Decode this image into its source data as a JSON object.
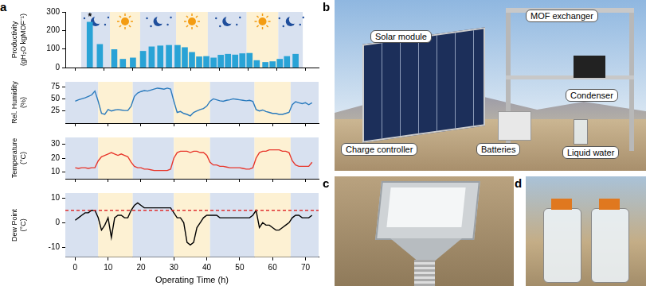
{
  "panel_labels": [
    "a",
    "b",
    "c",
    "d"
  ],
  "bands": [
    {
      "from": -3,
      "to": 7,
      "marker": "moon",
      "color": "#d8e1f0"
    },
    {
      "from": 7,
      "to": 17.5,
      "marker": "sun",
      "color": "#fdf1d3"
    },
    {
      "from": 17.5,
      "to": 30,
      "marker": "moon",
      "color": "#d8e1f0"
    },
    {
      "from": 30,
      "to": 41,
      "marker": "sun",
      "color": "#fdf1d3"
    },
    {
      "from": 41,
      "to": 54.5,
      "marker": "moon",
      "color": "#d8e1f0"
    },
    {
      "from": 54.5,
      "to": 65.5,
      "marker": "sun",
      "color": "#fdf1d3"
    },
    {
      "from": 65.5,
      "to": 74,
      "marker": "moon",
      "color": "#d8e1f0"
    }
  ],
  "photo_callouts": [
    "Solar module",
    "MOF exchanger",
    "Condenser",
    "Charge controller",
    "Batteries",
    "Liquid water"
  ],
  "chart_data": [
    {
      "type": "bar",
      "ylabel": [
        "Productivity",
        "(gH₂O kgMOF⁻¹)"
      ],
      "color": "#29a3d6",
      "x": [
        0,
        3.5,
        8.5,
        11.5,
        15,
        18.5,
        21.5,
        24.5,
        27.5,
        30.5,
        33,
        35.5,
        38,
        40.5,
        43,
        45.5,
        48,
        50.5,
        53,
        55.5,
        58,
        61,
        63.5,
        66,
        68.5,
        71.5
      ],
      "values": [
        245,
        125,
        97,
        45,
        52,
        88,
        112,
        117,
        120,
        120,
        108,
        82,
        58,
        60,
        52,
        67,
        72,
        68,
        75,
        77,
        38,
        28,
        32,
        45,
        60,
        72
      ],
      "annotations": [
        {
          "text": "*",
          "x": 0,
          "y": 272
        }
      ],
      "xlim": [
        -3,
        74
      ],
      "xticks": [
        0,
        10,
        20,
        30,
        40,
        50,
        60,
        70
      ],
      "ylim": [
        0,
        300
      ],
      "yticks": [
        0,
        100,
        200,
        300
      ],
      "grid": false,
      "tick_labels": "y"
    },
    {
      "type": "line",
      "ylabel": [
        "Rel. Humidity",
        "(%)"
      ],
      "color": "#2b7bbd",
      "x": [
        0,
        1,
        2,
        3,
        4,
        5,
        6,
        7,
        8,
        9,
        10,
        11,
        12,
        13,
        14,
        15,
        16,
        17,
        18,
        19,
        20,
        21,
        22,
        23,
        24,
        25,
        26,
        27,
        28,
        29,
        30,
        31,
        32,
        33,
        34,
        35,
        36,
        37,
        38,
        39,
        40,
        41,
        42,
        43,
        44,
        45,
        46,
        47,
        48,
        49,
        50,
        51,
        52,
        53,
        54,
        55,
        56,
        57,
        58,
        59,
        60,
        61,
        62,
        63,
        64,
        65,
        66,
        67,
        68,
        69,
        70,
        71,
        72
      ],
      "values": [
        45,
        48,
        50,
        52,
        55,
        58,
        66,
        45,
        20,
        18,
        28,
        25,
        27,
        28,
        27,
        26,
        26,
        35,
        55,
        62,
        65,
        67,
        66,
        68,
        70,
        72,
        71,
        70,
        72,
        70,
        45,
        22,
        24,
        20,
        18,
        15,
        22,
        25,
        28,
        30,
        35,
        45,
        50,
        48,
        46,
        45,
        47,
        48,
        50,
        49,
        48,
        47,
        46,
        47,
        45,
        28,
        25,
        27,
        24,
        22,
        20,
        20,
        18,
        18,
        20,
        22,
        38,
        44,
        42,
        40,
        42,
        38,
        42
      ],
      "xlim": [
        -3,
        74
      ],
      "xticks": [
        0,
        10,
        20,
        30,
        40,
        50,
        60,
        70
      ],
      "ylim": [
        0,
        85
      ],
      "yticks": [
        25,
        50,
        75
      ],
      "grid": false,
      "tick_labels": "y"
    },
    {
      "type": "line",
      "ylabel": [
        "Temperature",
        "(°C)"
      ],
      "color": "#e8372c",
      "x": [
        0,
        1,
        2,
        3,
        4,
        5,
        6,
        7,
        8,
        9,
        10,
        11,
        12,
        13,
        14,
        15,
        16,
        17,
        18,
        19,
        20,
        21,
        22,
        23,
        24,
        25,
        26,
        27,
        28,
        29,
        30,
        31,
        32,
        33,
        34,
        35,
        36,
        37,
        38,
        39,
        40,
        41,
        42,
        43,
        44,
        45,
        46,
        47,
        48,
        49,
        50,
        51,
        52,
        53,
        54,
        55,
        56,
        57,
        58,
        59,
        60,
        61,
        62,
        63,
        64,
        65,
        66,
        67,
        68,
        69,
        70,
        71,
        72
      ],
      "values": [
        13,
        12.5,
        13,
        13,
        12.5,
        13,
        13,
        18,
        21,
        22,
        23,
        24,
        23,
        22,
        23,
        22,
        21,
        17,
        14,
        13,
        13,
        12,
        12,
        11.5,
        11,
        11,
        11,
        11,
        11,
        12,
        20,
        24,
        25,
        25,
        25,
        24,
        25,
        25,
        24,
        24,
        22,
        17,
        15,
        15,
        14,
        14,
        13.5,
        13,
        13,
        13,
        13,
        12.5,
        12,
        12,
        13,
        20,
        24,
        25,
        25,
        26,
        26,
        26,
        26,
        25,
        25,
        24,
        18,
        15,
        14,
        14,
        14,
        14,
        17
      ],
      "xlim": [
        -3,
        74
      ],
      "xticks": [
        0,
        10,
        20,
        30,
        40,
        50,
        60,
        70
      ],
      "ylim": [
        5,
        35
      ],
      "yticks": [
        10,
        20,
        30
      ],
      "grid": false,
      "tick_labels": "y"
    },
    {
      "type": "line",
      "ylabel": [
        "Dew Point",
        "(°C)"
      ],
      "xlabel": "Operating Time (h)",
      "color": "#000000",
      "x": [
        0,
        1,
        2,
        3,
        4,
        5,
        6,
        7,
        8,
        9,
        10,
        11,
        12,
        13,
        14,
        15,
        16,
        17,
        18,
        19,
        20,
        21,
        22,
        23,
        24,
        25,
        26,
        27,
        28,
        29,
        30,
        31,
        32,
        33,
        34,
        35,
        36,
        37,
        38,
        39,
        40,
        41,
        42,
        43,
        44,
        45,
        46,
        47,
        48,
        49,
        50,
        51,
        52,
        53,
        54,
        55,
        56,
        57,
        58,
        59,
        60,
        61,
        62,
        63,
        64,
        65,
        66,
        67,
        68,
        69,
        70,
        71,
        72
      ],
      "values": [
        1,
        2,
        3,
        4,
        4,
        5,
        5,
        2,
        -3,
        -1,
        2,
        -6,
        2,
        3,
        3,
        2,
        2,
        5,
        7,
        8,
        7,
        6,
        6,
        6,
        6,
        6,
        6,
        6,
        6,
        6,
        4,
        2,
        2,
        0,
        -8,
        -9,
        -8,
        -2,
        0,
        2,
        3,
        3,
        3,
        3,
        2,
        2,
        2,
        2,
        2,
        2,
        2,
        2,
        2,
        2,
        3,
        5,
        -2,
        0,
        -1,
        -1,
        -2,
        -3,
        -3,
        -2,
        -1,
        0,
        2,
        3,
        3,
        2,
        2,
        2,
        3
      ],
      "reference_line": {
        "value": 5,
        "color": "#e03030",
        "line_style": "dashed"
      },
      "xlim": [
        -3,
        74
      ],
      "xticks": [
        0,
        10,
        20,
        30,
        40,
        50,
        60,
        70
      ],
      "ylim": [
        -14,
        12
      ],
      "yticks": [
        -10,
        0,
        10
      ],
      "grid": false
    }
  ]
}
